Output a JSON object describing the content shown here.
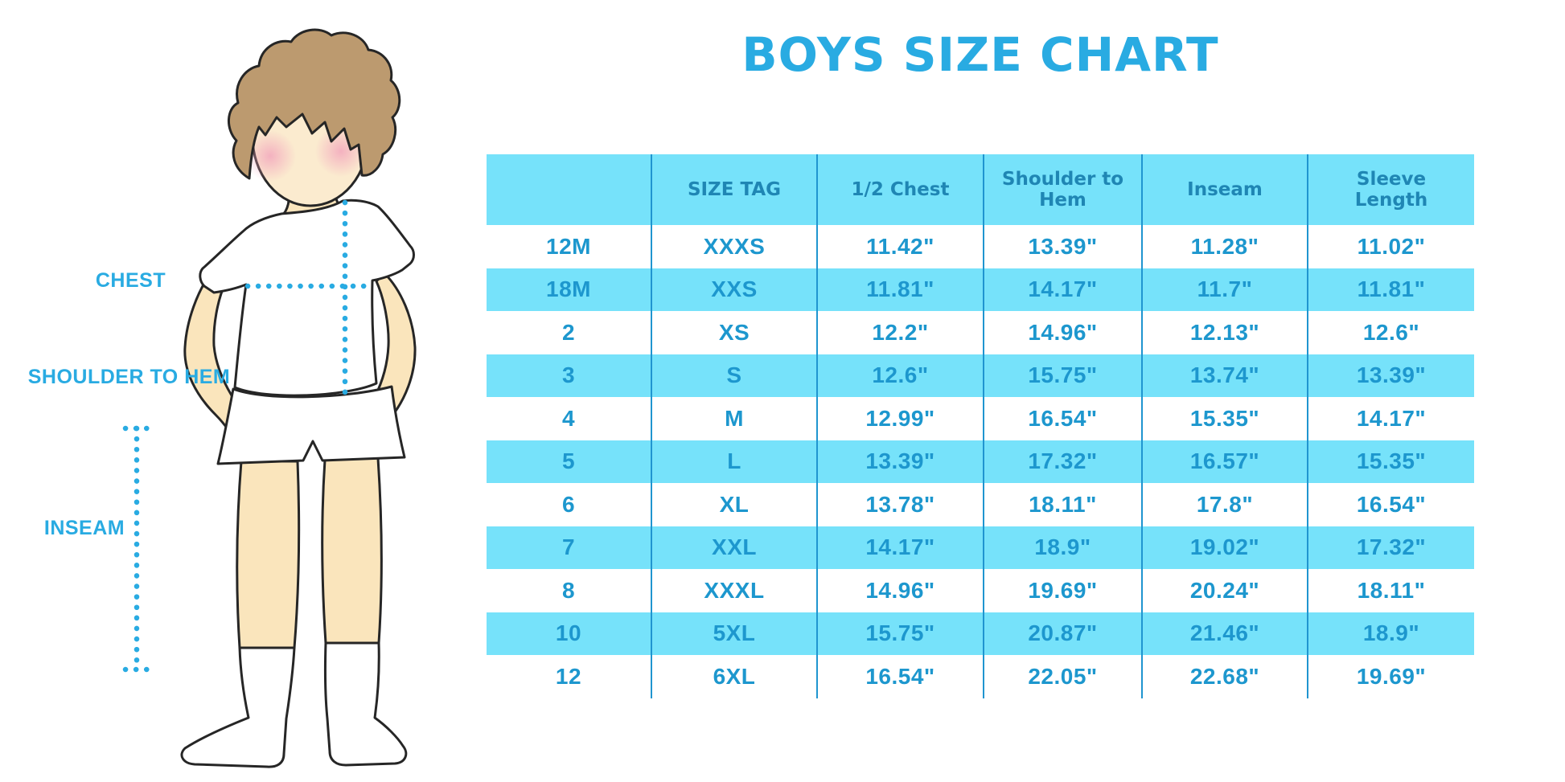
{
  "title": "BOYS SIZE CHART",
  "diagram": {
    "labels": {
      "chest": "CHEST",
      "shoulder_to_hem": "SHOULDER TO HEM",
      "inseam": "INSEAM"
    }
  },
  "chart_data": {
    "type": "table",
    "title": "BOYS SIZE CHART",
    "columns": [
      "",
      "SIZE TAG",
      "1/2 Chest",
      "Shoulder to Hem",
      "Inseam",
      "Sleeve Length"
    ],
    "rows": [
      [
        "12M",
        "XXXS",
        "11.42\"",
        "13.39\"",
        "11.28\"",
        "11.02\""
      ],
      [
        "18M",
        "XXS",
        "11.81\"",
        "14.17\"",
        "11.7\"",
        "11.81\""
      ],
      [
        "2",
        "XS",
        "12.2\"",
        "14.96\"",
        "12.13\"",
        "12.6\""
      ],
      [
        "3",
        "S",
        "12.6\"",
        "15.75\"",
        "13.74\"",
        "13.39\""
      ],
      [
        "4",
        "M",
        "12.99\"",
        "16.54\"",
        "15.35\"",
        "14.17\""
      ],
      [
        "5",
        "L",
        "13.39\"",
        "17.32\"",
        "16.57\"",
        "15.35\""
      ],
      [
        "6",
        "XL",
        "13.78\"",
        "18.11\"",
        "17.8\"",
        "16.54\""
      ],
      [
        "7",
        "XXL",
        "14.17\"",
        "18.9\"",
        "19.02\"",
        "17.32\""
      ],
      [
        "8",
        "XXXL",
        "14.96\"",
        "19.69\"",
        "20.24\"",
        "18.11\""
      ],
      [
        "10",
        "5XL",
        "15.75\"",
        "20.87\"",
        "21.46\"",
        "18.9\""
      ],
      [
        "12",
        "6XL",
        "16.54\"",
        "22.05\"",
        "22.68\"",
        "19.69\""
      ]
    ],
    "layout": {
      "row_striping": "white/cyan alternating",
      "grid": "vertical dividers only",
      "legend": "none"
    }
  },
  "colors": {
    "accent": "#29ABE2",
    "header_bg": "#76E2FA",
    "row_alt_bg": "#76E2FA",
    "header_text": "#1F86B4",
    "data_text": "#1D97CE",
    "divider": "#2095D0",
    "skin": "#FAE5BC",
    "face": "#FBEBCF",
    "hair": "#BC9A6F",
    "blush": "#F2A3BC",
    "outline": "#262626"
  }
}
